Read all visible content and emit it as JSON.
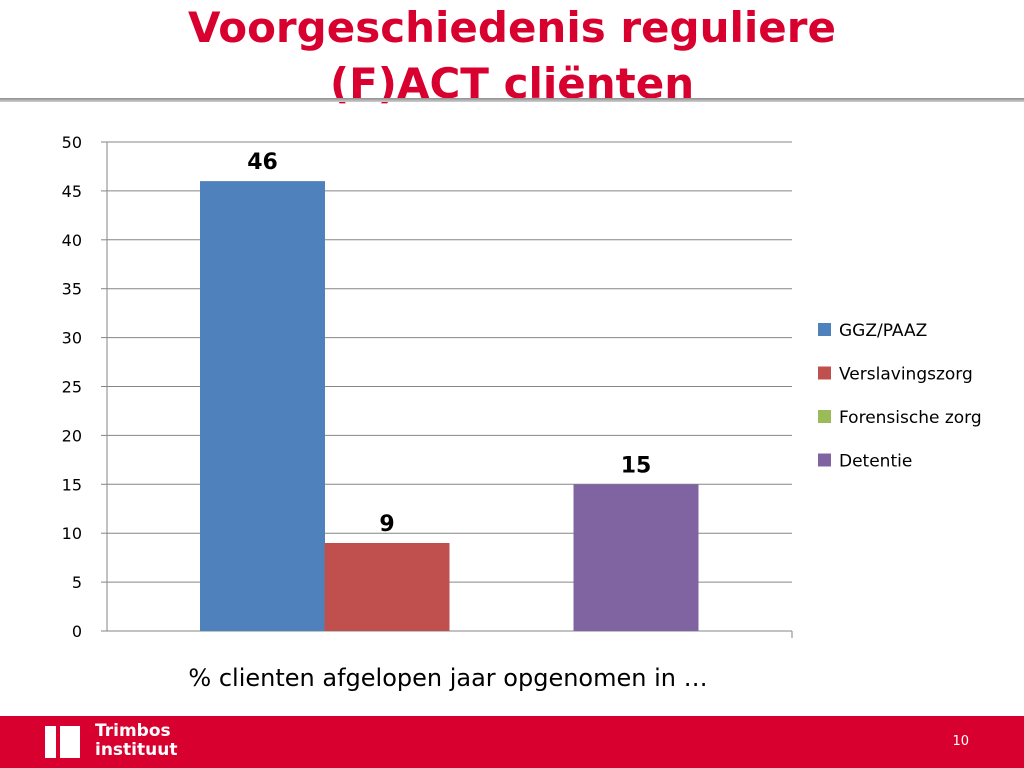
{
  "slide": {
    "title_line1": "Voorgeschiedenis reguliere",
    "title_line2": "(F)ACT cliënten",
    "page_number": "10",
    "colors": {
      "title": "#d8002f",
      "footer": "#d8002f"
    }
  },
  "footer": {
    "logo_line1": "Trimbos",
    "logo_line2": "instituut"
  },
  "chart_data": {
    "type": "bar",
    "title": "",
    "xlabel": "% clienten afgelopen jaar opgenomen in …",
    "ylabel": "",
    "ylim": [
      0,
      50
    ],
    "yticks": [
      0,
      5,
      10,
      15,
      20,
      25,
      30,
      35,
      40,
      45,
      50
    ],
    "grid": true,
    "legend_position": "right",
    "categories": [
      ""
    ],
    "series": [
      {
        "name": "GGZ/PAAZ",
        "color": "#4f81bd",
        "values": [
          46
        ],
        "label": "46"
      },
      {
        "name": "Verslavingszorg",
        "color": "#c0504d",
        "values": [
          9
        ],
        "label": "9"
      },
      {
        "name": "Forensische zorg",
        "color": "#9bbb59",
        "values": [
          null
        ],
        "label": ""
      },
      {
        "name": "Detentie",
        "color": "#8064a2",
        "values": [
          15
        ],
        "label": "15"
      }
    ]
  }
}
